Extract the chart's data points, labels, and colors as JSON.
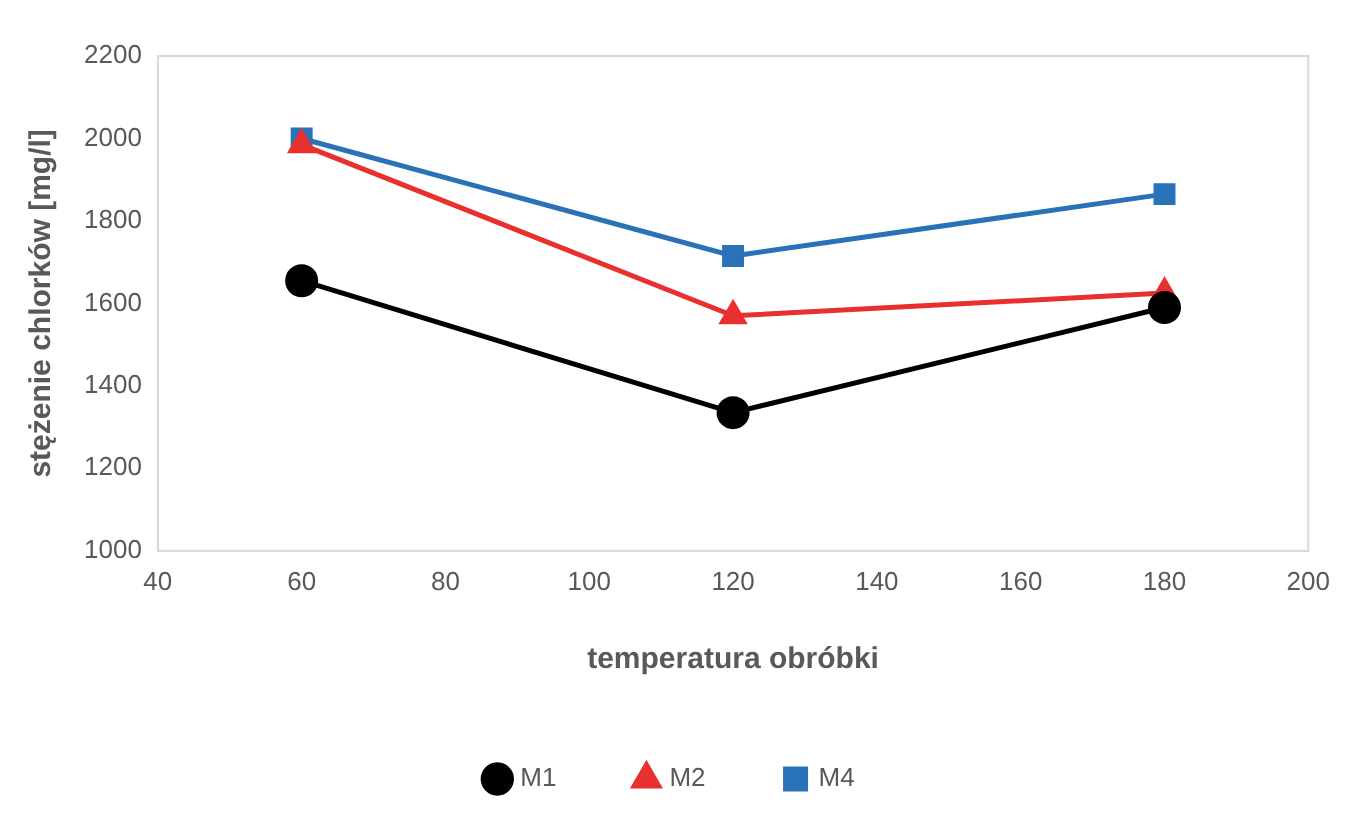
{
  "chart_data": {
    "type": "line",
    "xlabel": "temperatura obróbki",
    "ylabel": "stężenie chlorków [mg/l]",
    "x": [
      60,
      120,
      180
    ],
    "series": [
      {
        "name": "M1",
        "color": "#000000",
        "marker": "circle",
        "values": [
          1655,
          1335,
          1590
        ]
      },
      {
        "name": "M2",
        "color": "#e8302e",
        "marker": "triangle",
        "values": [
          1985,
          1570,
          1625
        ]
      },
      {
        "name": "M4",
        "color": "#2a72b8",
        "marker": "square",
        "values": [
          2000,
          1715,
          1865
        ]
      }
    ],
    "xlim": [
      40,
      200
    ],
    "xticks": [
      40,
      60,
      80,
      100,
      120,
      140,
      160,
      180,
      200
    ],
    "ylim": [
      1000,
      2200
    ],
    "yticks": [
      1000,
      1200,
      1400,
      1600,
      1800,
      2000,
      2200
    ],
    "grid": false,
    "legend": "bottom",
    "line_style": "solid"
  }
}
